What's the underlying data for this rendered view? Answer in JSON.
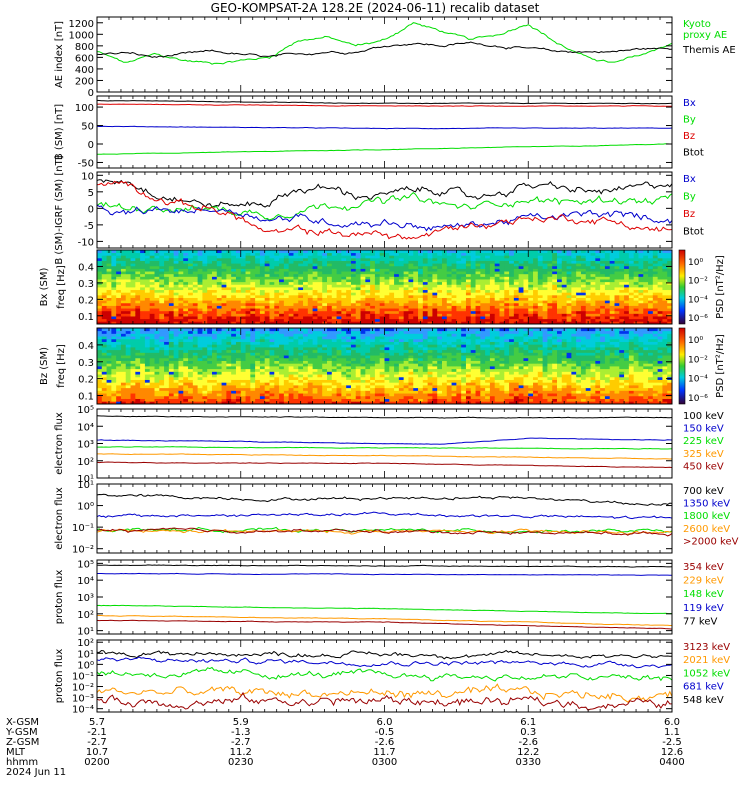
{
  "title": "GEO-KOMPSAT-2A 128.2E (2024-06-11) recalib dataset",
  "time_axis": {
    "row_labels": [
      "X-GSM",
      "Y-GSM",
      "Z-GSM",
      "MLT",
      "hhmm",
      "2024 Jun 11"
    ],
    "columns": [
      [
        "5.7",
        "-2.1",
        "-2.7",
        "10.7",
        "0200"
      ],
      [
        "5.9",
        "-1.3",
        "-2.7",
        "11.2",
        "0230"
      ],
      [
        "6.0",
        "-0.5",
        "-2.6",
        "11.7",
        "0300"
      ],
      [
        "6.1",
        "0.3",
        "-2.6",
        "12.2",
        "0330"
      ],
      [
        "6.0",
        "1.1",
        "-2.5",
        "12.6",
        "0400"
      ]
    ]
  },
  "colors": {
    "black": "#000000",
    "blue": "#0000cc",
    "green": "#00dd00",
    "red": "#dd0000",
    "orange": "#ff9900",
    "darkred": "#990000",
    "lightblue": "#2244ff"
  },
  "chart_data": [
    {
      "id": "ae",
      "type": "line",
      "ylabel": "AE index [nT]",
      "yticks": [
        "0",
        "200",
        "400",
        "600",
        "800",
        "1000",
        "1200"
      ],
      "ylim": [
        0,
        1300
      ],
      "legend": [
        {
          "text": "Kyoto proxy AE",
          "lines": [
            "Kyoto",
            "proxy AE"
          ],
          "color": "#00dd00"
        },
        {
          "text": "Themis AE",
          "lines": [
            "Themis AE"
          ],
          "color": "#000000"
        }
      ],
      "series": [
        {
          "name": "Kyoto proxy AE",
          "color": "#00dd00",
          "x": [
            0,
            0.05,
            0.1,
            0.15,
            0.2,
            0.25,
            0.3,
            0.35,
            0.4,
            0.45,
            0.5,
            0.55,
            0.6,
            0.65,
            0.7,
            0.75,
            0.8,
            0.85,
            0.9,
            0.95,
            1.0
          ],
          "y": [
            700,
            500,
            650,
            550,
            500,
            550,
            600,
            900,
            950,
            800,
            900,
            1200,
            1050,
            900,
            1000,
            1200,
            850,
            600,
            500,
            650,
            850
          ]
        },
        {
          "name": "Themis AE",
          "color": "#000000",
          "x": [
            0,
            0.05,
            0.1,
            0.15,
            0.2,
            0.25,
            0.3,
            0.35,
            0.4,
            0.45,
            0.5,
            0.55,
            0.6,
            0.65,
            0.7,
            0.75,
            0.8,
            0.85,
            0.9,
            0.95,
            1.0
          ],
          "y": [
            650,
            680,
            600,
            650,
            700,
            650,
            600,
            650,
            700,
            700,
            800,
            850,
            800,
            850,
            800,
            750,
            700,
            700,
            700,
            750,
            750
          ]
        }
      ]
    },
    {
      "id": "bsm",
      "type": "line",
      "ylabel": "B (SM) [nT]",
      "yticks": [
        "-50",
        "0",
        "50",
        "100"
      ],
      "ylim": [
        -65,
        130
      ],
      "legend": [
        {
          "text": "Bx",
          "color": "#0000cc"
        },
        {
          "text": "By",
          "color": "#00dd00"
        },
        {
          "text": "Bz",
          "color": "#dd0000"
        },
        {
          "text": "Btot",
          "color": "#000000"
        }
      ],
      "series": [
        {
          "name": "Btot",
          "color": "#000000",
          "x": [
            0,
            0.5,
            1
          ],
          "y": [
            118,
            110,
            110
          ]
        },
        {
          "name": "Bz",
          "color": "#dd0000",
          "x": [
            0,
            0.5,
            1
          ],
          "y": [
            108,
            103,
            103
          ]
        },
        {
          "name": "Bx",
          "color": "#0000cc",
          "x": [
            0,
            0.5,
            1
          ],
          "y": [
            48,
            42,
            43
          ]
        },
        {
          "name": "By",
          "color": "#00dd00",
          "x": [
            0,
            0.5,
            1
          ],
          "y": [
            -28,
            -15,
            0
          ]
        }
      ]
    },
    {
      "id": "bresid",
      "type": "line",
      "ylabel": "B (SM)-IGRF (SM) [nT]",
      "yticks": [
        "-10",
        "-5",
        "0",
        "5",
        "10"
      ],
      "ylim": [
        -12,
        11
      ],
      "legend": [
        {
          "text": "Bx",
          "color": "#0000cc"
        },
        {
          "text": "By",
          "color": "#00dd00"
        },
        {
          "text": "Bz",
          "color": "#dd0000"
        },
        {
          "text": "Btot",
          "color": "#000000"
        }
      ],
      "series": [
        {
          "name": "Btot",
          "color": "#000000",
          "x": [
            0,
            0.05,
            0.1,
            0.15,
            0.2,
            0.25,
            0.3,
            0.35,
            0.4,
            0.45,
            0.5,
            0.55,
            0.6,
            0.65,
            0.7,
            0.75,
            0.8,
            0.85,
            0.9,
            0.95,
            1.0
          ],
          "y": [
            8,
            9,
            5,
            3,
            1,
            1,
            2,
            6,
            6,
            4,
            4,
            5,
            6,
            3,
            5,
            7,
            6,
            5,
            5,
            6,
            8
          ]
        },
        {
          "name": "By",
          "color": "#00dd00",
          "x": [
            0,
            0.05,
            0.1,
            0.15,
            0.2,
            0.25,
            0.3,
            0.35,
            0.4,
            0.45,
            0.5,
            0.55,
            0.6,
            0.65,
            0.7,
            0.75,
            0.8,
            0.85,
            0.9,
            0.95,
            1.0
          ],
          "y": [
            1,
            0,
            1,
            0,
            0,
            -1,
            -2,
            0,
            1,
            2,
            2,
            3,
            1,
            0,
            2,
            3,
            2,
            2,
            3,
            2,
            3
          ]
        },
        {
          "name": "Bx",
          "color": "#0000cc",
          "x": [
            0,
            0.05,
            0.1,
            0.15,
            0.2,
            0.25,
            0.3,
            0.35,
            0.4,
            0.45,
            0.5,
            0.55,
            0.6,
            0.65,
            0.7,
            0.75,
            0.8,
            0.85,
            0.9,
            0.95,
            1.0
          ],
          "y": [
            0,
            -2,
            -1,
            -1,
            0,
            -1,
            -3,
            -3,
            -4,
            -4,
            -4,
            -5,
            -6,
            -5,
            -4,
            -3,
            -3,
            -2,
            -2,
            -3,
            -3
          ]
        },
        {
          "name": "Bz",
          "color": "#dd0000",
          "x": [
            0,
            0.05,
            0.1,
            0.15,
            0.2,
            0.25,
            0.3,
            0.35,
            0.4,
            0.45,
            0.5,
            0.55,
            0.6,
            0.65,
            0.7,
            0.75,
            0.8,
            0.85,
            0.9,
            0.95,
            1.0
          ],
          "y": [
            7,
            8,
            4,
            1,
            0,
            -3,
            -8,
            -7,
            -7,
            -8,
            -8,
            -9,
            -7,
            -5,
            -4,
            -3,
            -3,
            -3,
            -4,
            -6,
            -7
          ]
        }
      ]
    },
    {
      "id": "bxpsd",
      "type": "heatmap",
      "title": "Bx (SM)",
      "ylabel": "freq [Hz]",
      "yticks": [
        "0.1",
        "0.2",
        "0.3",
        "0.4"
      ],
      "ylim": [
        0.05,
        0.5
      ],
      "colorbar": {
        "label": "PSD [nT²/Hz]",
        "ticks": [
          "10⁰",
          "10⁻²",
          "10⁻⁴",
          "10⁻⁶"
        ]
      }
    },
    {
      "id": "bzpsd",
      "type": "heatmap",
      "title": "Bz (SM)",
      "ylabel": "freq [Hz]",
      "yticks": [
        "0.1",
        "0.2",
        "0.3",
        "0.4"
      ],
      "ylim": [
        0.05,
        0.5
      ],
      "colorbar": {
        "label": "PSD [nT²/Hz]",
        "ticks": [
          "10⁰",
          "10⁻²",
          "10⁻⁴",
          "10⁻⁶"
        ]
      }
    },
    {
      "id": "eflux_low",
      "type": "line",
      "log": true,
      "ylabel": "electron flux",
      "yticks": [
        "10¹",
        "10²",
        "10³",
        "10⁴",
        "10⁵"
      ],
      "ylim": [
        1,
        5
      ],
      "legend": [
        {
          "text": "100 keV",
          "color": "#000000"
        },
        {
          "text": "150 keV",
          "color": "#0000cc"
        },
        {
          "text": "225 keV",
          "color": "#00dd00"
        },
        {
          "text": "325 keV",
          "color": "#ff9900"
        },
        {
          "text": "450 keV",
          "color": "#990000"
        }
      ],
      "series": [
        {
          "name": "100 keV",
          "color": "#000000",
          "x": [
            0,
            0.5,
            1
          ],
          "y": [
            4.6,
            4.5,
            4.5
          ]
        },
        {
          "name": "150 keV",
          "color": "#0000cc",
          "x": [
            0,
            0.3,
            0.6,
            0.75,
            1
          ],
          "y": [
            3.2,
            3.1,
            2.95,
            3.3,
            3.2
          ]
        },
        {
          "name": "225 keV",
          "color": "#00dd00",
          "x": [
            0,
            0.5,
            1
          ],
          "y": [
            2.8,
            2.75,
            2.7
          ]
        },
        {
          "name": "325 keV",
          "color": "#ff9900",
          "x": [
            0,
            0.5,
            1
          ],
          "y": [
            2.4,
            2.3,
            2.1
          ]
        },
        {
          "name": "450 keV",
          "color": "#990000",
          "x": [
            0,
            0.5,
            1
          ],
          "y": [
            1.9,
            1.85,
            1.6
          ]
        }
      ]
    },
    {
      "id": "eflux_high",
      "type": "line",
      "log": true,
      "ylabel": "electron flux",
      "yticks": [
        "10⁻²",
        "10⁻¹",
        "10⁰",
        "10¹"
      ],
      "ylim": [
        -2.2,
        1
      ],
      "legend": [
        {
          "text": "700 keV",
          "color": "#000000"
        },
        {
          "text": "1350 keV",
          "color": "#0000cc"
        },
        {
          "text": "1800 keV",
          "color": "#00dd00"
        },
        {
          "text": "2600 keV",
          "color": "#ff9900"
        },
        {
          "text": ">2000 keV",
          "color": "#990000"
        }
      ],
      "series": [
        {
          "name": "700 keV",
          "color": "#000000",
          "x": [
            0,
            0.3,
            0.7,
            1
          ],
          "y": [
            0.5,
            0.3,
            0.4,
            0.05
          ]
        },
        {
          "name": "1350 keV",
          "color": "#0000cc",
          "x": [
            0,
            0.5,
            1
          ],
          "y": [
            -0.5,
            -0.4,
            -0.6
          ]
        },
        {
          "name": "1800 keV",
          "color": "#00dd00",
          "x": [
            0,
            0.5,
            1
          ],
          "y": [
            -1.1,
            -1.15,
            -1.2
          ]
        },
        {
          "name": "2600 keV",
          "color": "#ff9900",
          "x": [
            0,
            0.5,
            1
          ],
          "y": [
            -1.2,
            -1.2,
            -1.25
          ]
        },
        {
          "name": ">2000 keV",
          "color": "#990000",
          "x": [
            0,
            0.5,
            1
          ],
          "y": [
            -1.15,
            -1.2,
            -1.3
          ]
        }
      ]
    },
    {
      "id": "pflux_low",
      "type": "line",
      "log": true,
      "ylabel": "proton flux",
      "yticks": [
        "10¹",
        "10²",
        "10³",
        "10⁴",
        "10⁵"
      ],
      "ylim": [
        0.8,
        5.2
      ],
      "legend": [
        {
          "text": "354 keV",
          "color": "#990000"
        },
        {
          "text": "229 keV",
          "color": "#ff9900"
        },
        {
          "text": "148 keV",
          "color": "#00dd00"
        },
        {
          "text": "119 keV",
          "color": "#0000cc"
        },
        {
          "text": "77 keV",
          "color": "#000000"
        }
      ],
      "series": [
        {
          "name": "77 keV",
          "color": "#000000",
          "x": [
            0,
            0.5,
            1
          ],
          "y": [
            4.9,
            4.85,
            4.8
          ]
        },
        {
          "name": "119 keV",
          "color": "#0000cc",
          "x": [
            0,
            0.5,
            1
          ],
          "y": [
            4.4,
            4.35,
            4.3
          ]
        },
        {
          "name": "148 keV",
          "color": "#00dd00",
          "x": [
            0,
            0.5,
            1
          ],
          "y": [
            2.5,
            2.3,
            2.0
          ]
        },
        {
          "name": "229 keV",
          "color": "#ff9900",
          "x": [
            0,
            0.5,
            1
          ],
          "y": [
            1.9,
            1.7,
            1.3
          ]
        },
        {
          "name": "354 keV",
          "color": "#990000",
          "x": [
            0,
            0.5,
            1
          ],
          "y": [
            1.6,
            1.5,
            1.1
          ]
        }
      ]
    },
    {
      "id": "pflux_high",
      "type": "line",
      "log": true,
      "ylabel": "proton flux",
      "yticks": [
        "10⁻⁴",
        "10⁻³",
        "10⁻²",
        "10⁻¹",
        "10⁰",
        "10¹",
        "10²"
      ],
      "ylim": [
        -4.3,
        2.2
      ],
      "legend": [
        {
          "text": "3123 keV",
          "color": "#990000"
        },
        {
          "text": "2021 keV",
          "color": "#ff9900"
        },
        {
          "text": "1052 keV",
          "color": "#00dd00"
        },
        {
          "text": "681 keV",
          "color": "#0000cc"
        },
        {
          "text": "548 keV",
          "color": "#000000"
        }
      ],
      "series": [
        {
          "name": "548 keV",
          "color": "#000000",
          "x": [
            0,
            0.5,
            1
          ],
          "y": [
            1.0,
            0.9,
            0.8
          ]
        },
        {
          "name": "681 keV",
          "color": "#0000cc",
          "x": [
            0,
            0.5,
            1
          ],
          "y": [
            0.4,
            0.2,
            0.0
          ]
        },
        {
          "name": "1052 keV",
          "color": "#00dd00",
          "x": [
            0,
            0.5,
            1
          ],
          "y": [
            -0.8,
            -1.0,
            -1.3
          ]
        },
        {
          "name": "2021 keV",
          "color": "#ff9900",
          "x": [
            0,
            0.5,
            1
          ],
          "y": [
            -2.5,
            -2.6,
            -2.8
          ]
        },
        {
          "name": "3123 keV",
          "color": "#990000",
          "x": [
            0,
            0.5,
            1
          ],
          "y": [
            -3.3,
            -3.3,
            -3.6
          ]
        }
      ]
    }
  ]
}
